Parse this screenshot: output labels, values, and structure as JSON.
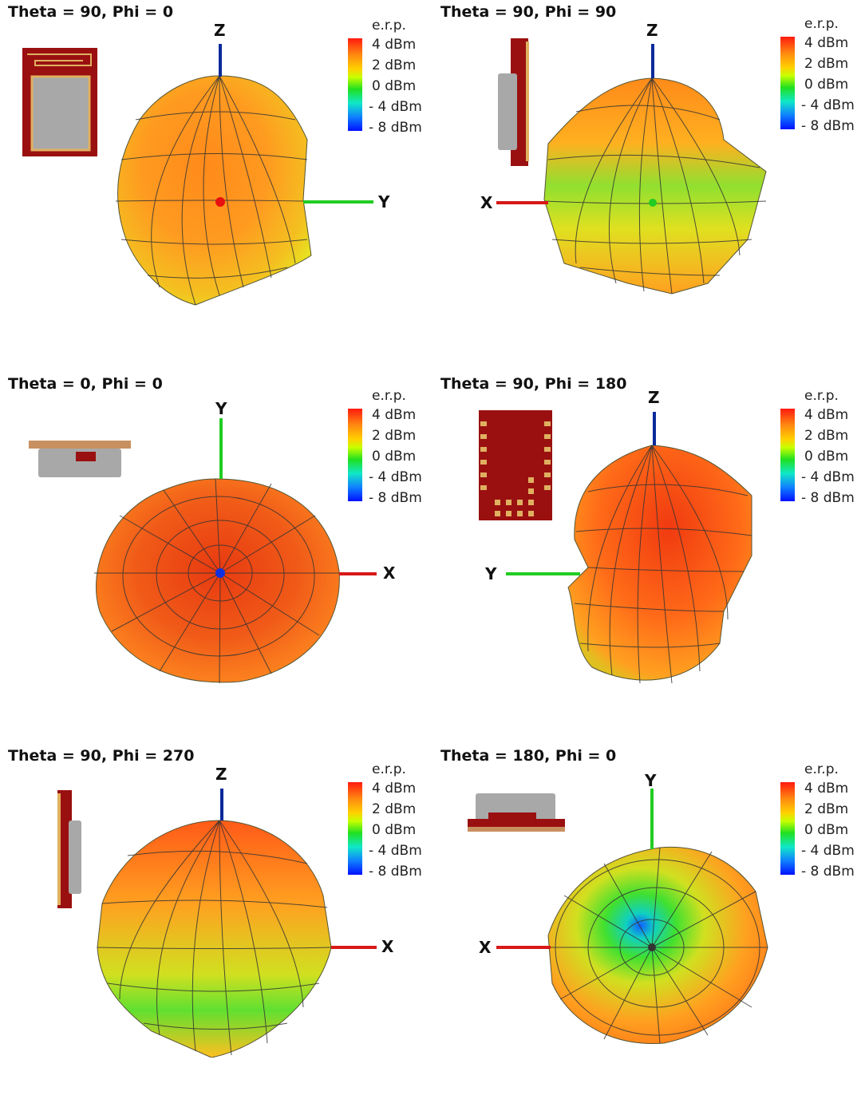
{
  "legend": {
    "title": "e.r.p.",
    "ticks": [
      "4 dBm",
      "2 dBm",
      "0 dBm",
      "- 4 dBm",
      "- 8 dBm"
    ]
  },
  "colors": {
    "z_axis": "#0a2a9a",
    "x_axis": "#d81818",
    "y_axis": "#22cc22",
    "pcb": "#9a1010",
    "shield": "#a8a8a8",
    "pad": "#e0b060"
  },
  "panels": [
    {
      "title": "Theta = 90, Phi = 0",
      "axes": {
        "vertical": "Z",
        "horizontal": "Y"
      }
    },
    {
      "title": "Theta = 90, Phi = 90",
      "axes": {
        "vertical": "Z",
        "horizontal": "X"
      }
    },
    {
      "title": "Theta = 0, Phi = 0",
      "axes": {
        "vertical": "Y",
        "horizontal": "X"
      }
    },
    {
      "title": "Theta = 90, Phi = 180",
      "axes": {
        "vertical": "Z",
        "horizontal": "Y"
      }
    },
    {
      "title": "Theta = 90, Phi = 270",
      "axes": {
        "vertical": "Z",
        "horizontal": "X"
      }
    },
    {
      "title": "Theta = 180, Phi = 0",
      "axes": {
        "vertical": "Y",
        "horizontal": "X"
      }
    }
  ]
}
